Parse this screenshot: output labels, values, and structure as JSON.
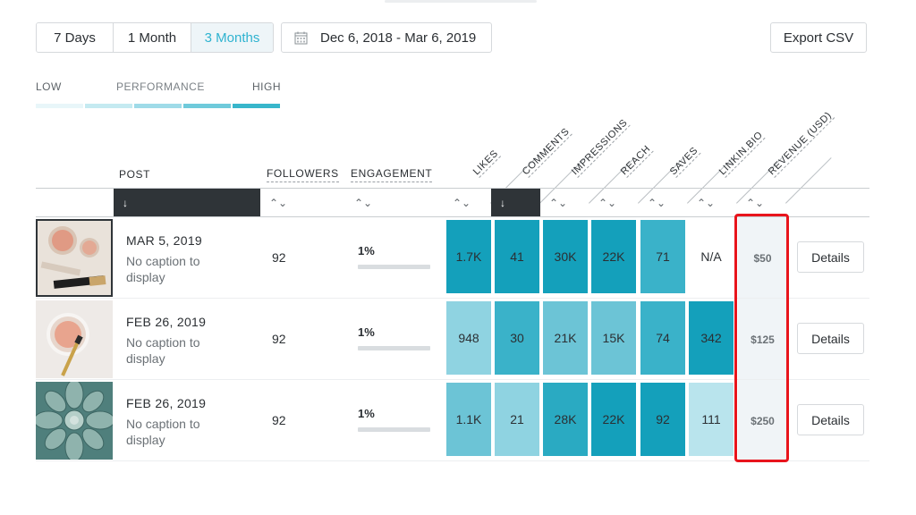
{
  "range": {
    "options": [
      "7 Days",
      "1 Month",
      "3 Months"
    ],
    "selected": "3 Months"
  },
  "date_range": "Dec 6, 2018 - Mar 6, 2019",
  "export_label": "Export CSV",
  "legend": {
    "low": "LOW",
    "mid": "PERFORMANCE",
    "high": "HIGH",
    "colors": [
      "#e8f6f9",
      "#c5eaf1",
      "#9fdbe8",
      "#6fcadb",
      "#38b6cb"
    ]
  },
  "columns": {
    "post": "POST",
    "followers": "FOLLOWERS",
    "engagement": "ENGAGEMENT",
    "likes": "LIKES",
    "comments": "COMMENTS",
    "impressions": "IMPRESSIONS",
    "reach": "REACH",
    "saves": "SAVES",
    "linkinbio": "LINKIN.BIO",
    "revenue": "REVENUE (USD)"
  },
  "sort_icons": {
    "active": "↓",
    "inactive": "⌃⌄"
  },
  "details_label": "Details",
  "heat_colors": {
    "dark": "#14a0bb",
    "medium": "#3ab2c9",
    "light": "#8fd3e1",
    "pale": "#b9e4ed"
  },
  "rows": [
    {
      "date": "MAR 5, 2019",
      "caption": "No caption to display",
      "followers": "92",
      "engagement": "1%",
      "likes": "1.7K",
      "comments": "41",
      "impressions": "30K",
      "reach": "22K",
      "saves": "71",
      "linkinbio": "N/A",
      "revenue": "$50"
    },
    {
      "date": "FEB 26, 2019",
      "caption": "No caption to display",
      "followers": "92",
      "engagement": "1%",
      "likes": "948",
      "comments": "30",
      "impressions": "21K",
      "reach": "15K",
      "saves": "74",
      "linkinbio": "342",
      "revenue": "$125"
    },
    {
      "date": "FEB 26, 2019",
      "caption": "No caption to display",
      "followers": "92",
      "engagement": "1%",
      "likes": "1.1K",
      "comments": "21",
      "impressions": "28K",
      "reach": "22K",
      "saves": "92",
      "linkinbio": "111",
      "revenue": "$250"
    }
  ]
}
